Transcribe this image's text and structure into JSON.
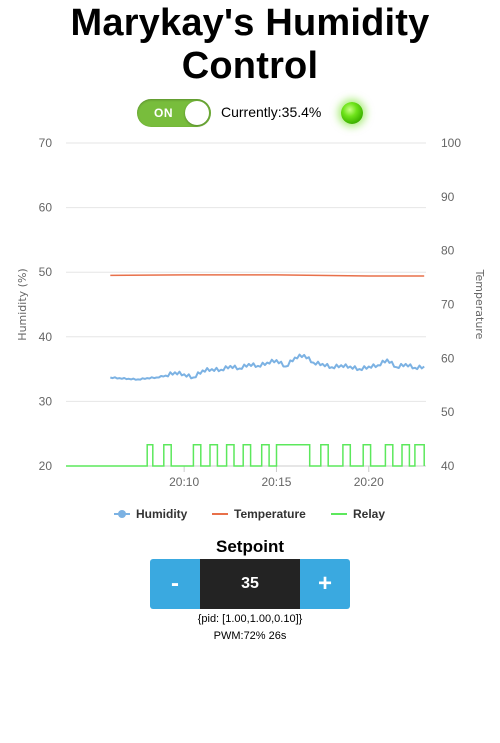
{
  "title": "Marykay's Humidity Control",
  "toggle": {
    "label": "ON",
    "state": "on"
  },
  "currently_text": "Currently:35.4%",
  "led": {
    "state": "on",
    "color": "#5fd916"
  },
  "chart_data": {
    "type": "line",
    "title": "",
    "x_ticks": [
      "20:10",
      "20:15",
      "20:20"
    ],
    "y_left": {
      "label": "Humidity (%)",
      "ticks": [
        20,
        30,
        40,
        50,
        60,
        70
      ],
      "range": [
        20,
        70
      ]
    },
    "y_right": {
      "label": "Temperature",
      "ticks": [
        40,
        50,
        60,
        70,
        80,
        90,
        100
      ],
      "range": [
        40,
        100
      ]
    },
    "x_range_minutes": [
      20.06,
      20.385
    ],
    "grid": true,
    "legend_position": "bottom",
    "series": [
      {
        "name": "Humidity",
        "axis": "left",
        "color": "#7cb2e3",
        "x": [
          "20:06",
          "20:06.5",
          "20:07",
          "20:07.5",
          "20:08",
          "20:08.5",
          "20:09",
          "20:09.5",
          "20:10",
          "20:10.5",
          "20:11",
          "20:11.5",
          "20:12",
          "20:12.5",
          "20:13",
          "20:13.5",
          "20:14",
          "20:14.5",
          "20:15",
          "20:15.5",
          "20:16",
          "20:16.5",
          "20:17",
          "20:17.5",
          "20:18",
          "20:18.5",
          "20:19",
          "20:19.5",
          "20:20",
          "20:20.5",
          "20:21",
          "20:21.5",
          "20:22",
          "20:22.5",
          "20:23"
        ],
        "values": [
          33.7,
          33.6,
          33.5,
          33.4,
          33.6,
          33.7,
          34.0,
          34.5,
          34.2,
          33.7,
          34.8,
          35.0,
          34.9,
          35.5,
          35.1,
          35.8,
          35.5,
          36.0,
          36.4,
          35.4,
          36.8,
          37.2,
          36.0,
          35.8,
          35.3,
          35.6,
          35.4,
          35.0,
          35.4,
          35.6,
          36.5,
          35.3,
          35.8,
          35.2,
          35.4
        ]
      },
      {
        "name": "Temperature",
        "axis": "right",
        "color": "#e8704a",
        "x": [
          "20:06",
          "20:10",
          "20:15",
          "20:20",
          "20:23"
        ],
        "values": [
          75.4,
          75.5,
          75.5,
          75.3,
          75.3
        ]
      },
      {
        "name": "Relay",
        "axis": "left",
        "color": "#5ce85c",
        "low": 20,
        "high": 23.3,
        "on_intervals": [
          [
            "20:08.0",
            "20:08.3"
          ],
          [
            "20:08.9",
            "20:09.3"
          ],
          [
            "20:10.5",
            "20:10.9"
          ],
          [
            "20:11.4",
            "20:11.8"
          ],
          [
            "20:12.3",
            "20:12.7"
          ],
          [
            "20:13.2",
            "20:13.6"
          ],
          [
            "20:14.2",
            "20:14.6"
          ],
          [
            "20:15.0",
            "20:16.8"
          ],
          [
            "20:17.4",
            "20:17.8"
          ],
          [
            "20:18.6",
            "20:19.0"
          ],
          [
            "20:19.7",
            "20:20.1"
          ],
          [
            "20:20.9",
            "20:21.3"
          ],
          [
            "20:21.8",
            "20:22.2"
          ],
          [
            "20:22.5",
            "20:23.0"
          ]
        ]
      }
    ],
    "legend": [
      "Humidity",
      "Temperature",
      "Relay"
    ]
  },
  "setpoint": {
    "label": "Setpoint",
    "value": "35",
    "minus_label": "-",
    "plus_label": "+"
  },
  "pid_text": "{pid: [1.00,1.00,0.10]}",
  "pwm_text": "PWM:72% 26s"
}
